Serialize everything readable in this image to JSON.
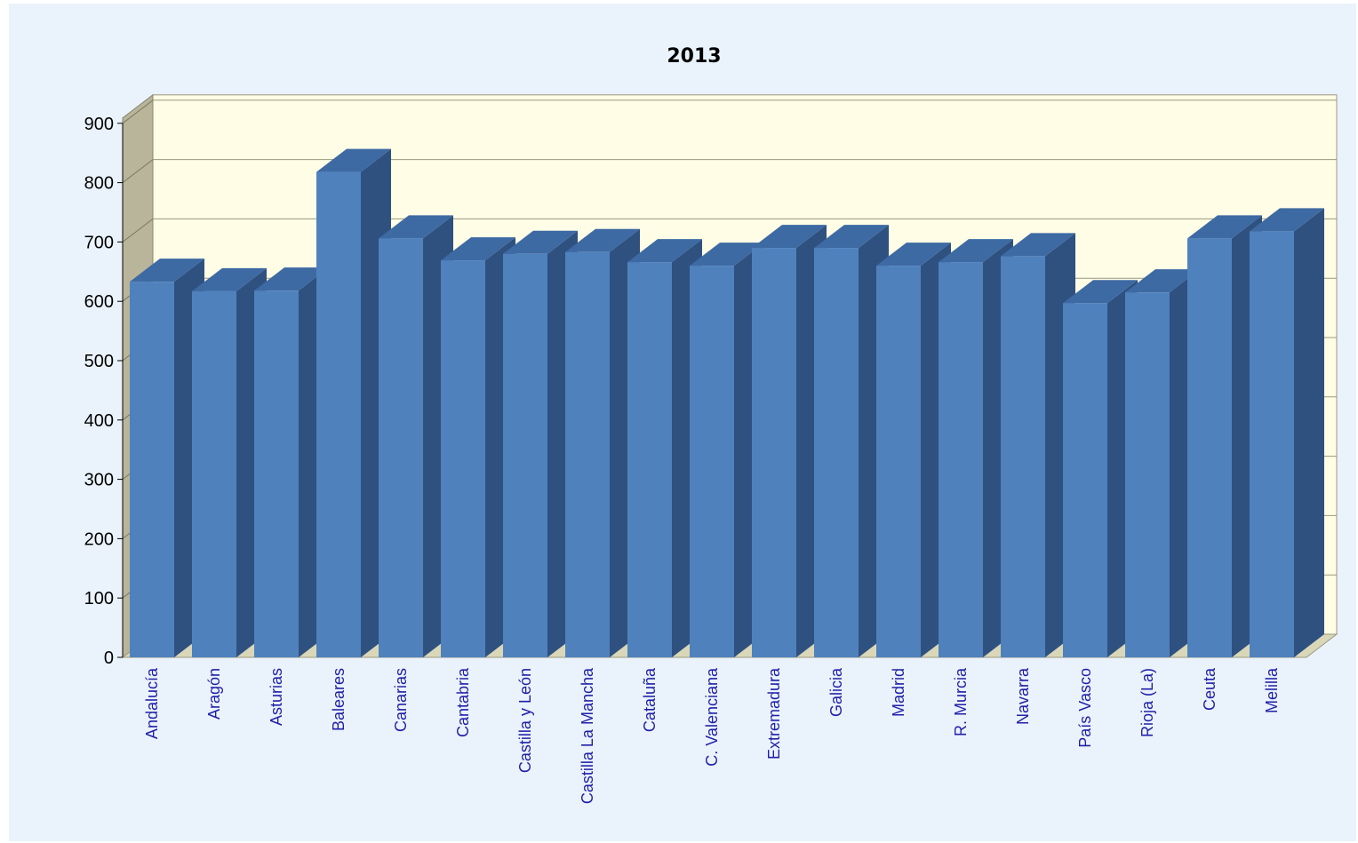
{
  "chart_data": {
    "type": "bar",
    "title": "2013",
    "xlabel": "",
    "ylabel": "",
    "ylim": [
      0,
      900
    ],
    "yticks": [
      0,
      100,
      200,
      300,
      400,
      500,
      600,
      700,
      800,
      900
    ],
    "grid": true,
    "legend": "none",
    "categories": [
      "Andalucía",
      "Aragón",
      "Asturias",
      "Baleares",
      "Canarias",
      "Cantabria",
      "Castilla y León",
      "Castilla La Mancha",
      "Cataluña",
      "C. Valenciana",
      "Extremadura",
      "Galicia",
      "Madrid",
      "R. Murcia",
      "Navarra",
      "País Vasco",
      "Rioja (La)",
      "Ceuta",
      "Melilla"
    ],
    "values": [
      633,
      617,
      618,
      818,
      706,
      669,
      680,
      683,
      666,
      660,
      690,
      690,
      660,
      666,
      676,
      597,
      615,
      706,
      718
    ],
    "colors": {
      "bar_front": "#4f81bd",
      "bar_side": "#2f5180",
      "bar_top": "#3d6aa3",
      "plot_back": "#fffde6",
      "left_wall": "#b8b59a",
      "floor": "#d9d7b8",
      "frame_bg": "#eaf3fb"
    }
  }
}
